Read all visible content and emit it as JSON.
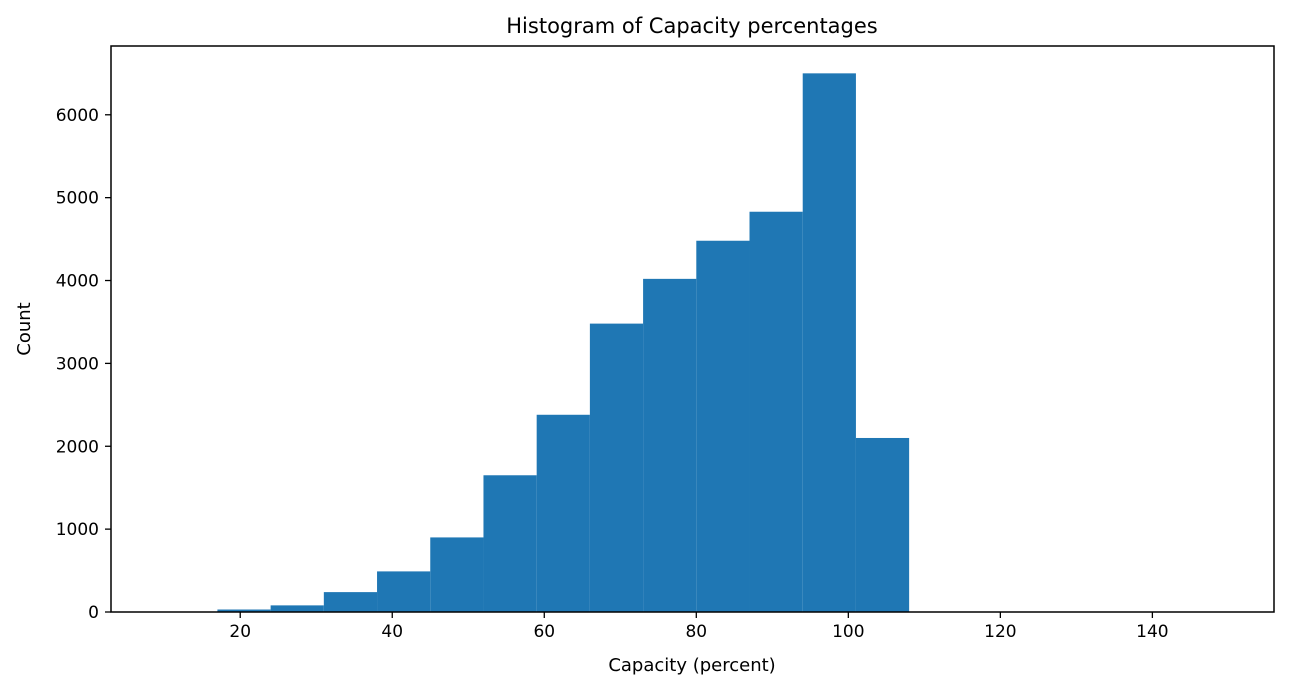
{
  "chart_data": {
    "type": "bar",
    "title": "Histogram of Capacity percentages",
    "xlabel": "Capacity (percent)",
    "ylabel": "Count",
    "bin_edges": [
      10,
      17,
      24,
      31,
      38,
      45,
      52,
      59,
      66,
      73,
      80,
      87,
      94,
      101,
      108,
      115,
      122,
      129,
      136,
      143,
      150
    ],
    "values": [
      5,
      30,
      80,
      240,
      490,
      900,
      1650,
      2380,
      3480,
      4020,
      4480,
      4830,
      6500,
      2100,
      0,
      0,
      0,
      0,
      0,
      3
    ],
    "xlim": [
      3,
      156
    ],
    "ylim": [
      0,
      6830
    ],
    "xticks": [
      20,
      40,
      60,
      80,
      100,
      120,
      140
    ],
    "yticks": [
      0,
      1000,
      2000,
      3000,
      4000,
      5000,
      6000
    ],
    "bar_color": "#1f77b4",
    "grid": false,
    "legend": "none"
  }
}
